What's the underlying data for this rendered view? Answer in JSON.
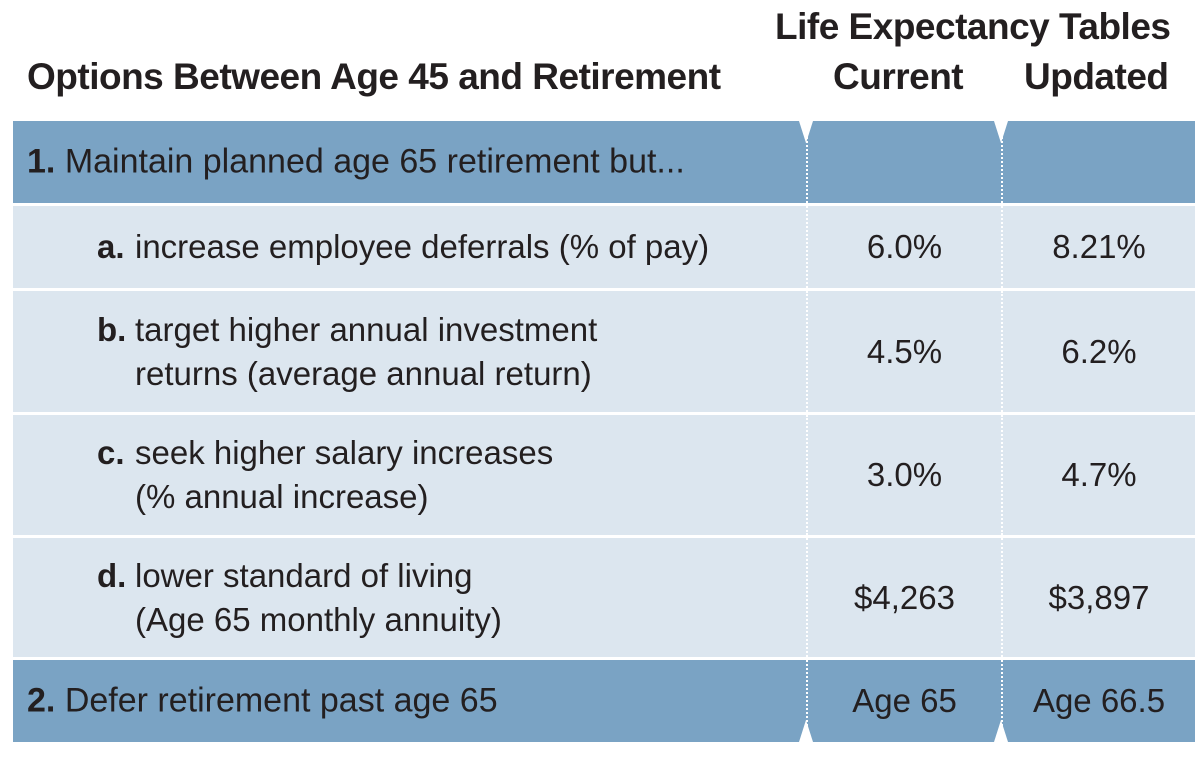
{
  "header": {
    "group_label": "Life Expectancy Tables",
    "options_label": "Options Between Age 45 and Retirement",
    "current_label": "Current",
    "updated_label": "Updated"
  },
  "section1": {
    "number": "1.",
    "label": "Maintain planned age 65 retirement but...",
    "items": [
      {
        "letter": "a.",
        "line1": "increase employee deferrals (% of pay)",
        "line2": "",
        "current": "6.0%",
        "updated": "8.21%"
      },
      {
        "letter": "b.",
        "line1": "target higher annual investment",
        "line2": "returns (average annual return)",
        "current": "4.5%",
        "updated": "6.2%"
      },
      {
        "letter": "c.",
        "line1": "seek higher salary increases",
        "line2": "(% annual increase)",
        "current": "3.0%",
        "updated": "4.7%"
      },
      {
        "letter": "d.",
        "line1": "lower standard of living",
        "line2": "(Age 65 monthly annuity)",
        "current": "$4,263",
        "updated": "$3,897"
      }
    ]
  },
  "section2": {
    "number": "2.",
    "label": "Defer retirement past age 65",
    "current": "Age 65",
    "updated": "Age 66.5"
  }
}
